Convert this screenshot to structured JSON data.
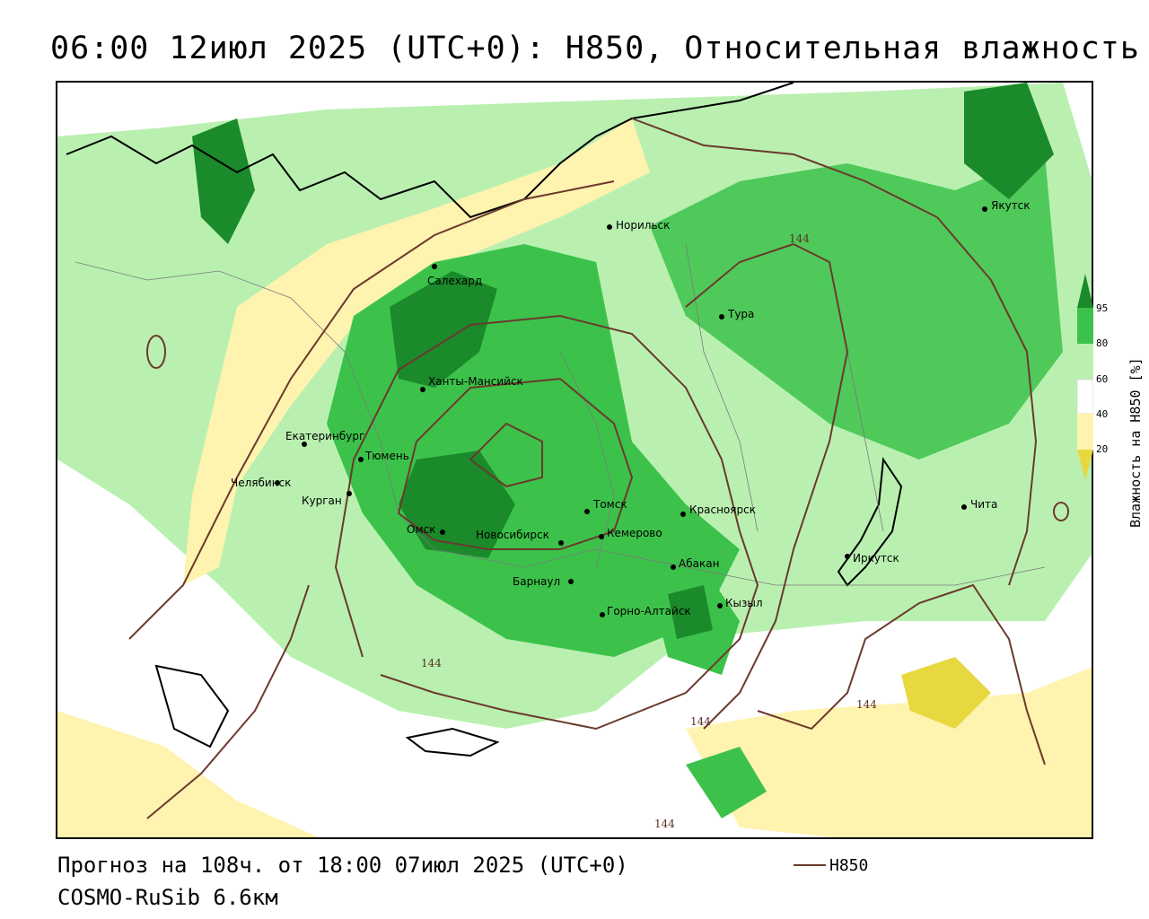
{
  "title": "06:00 12июл 2025 (UTC+0): H850, Относительная влажность",
  "footer": {
    "forecast": "Прогноз на 108ч. от 18:00 07июл 2025 (UTC+0)",
    "model": "COSMO-RuSib 6.6км"
  },
  "legend": {
    "contour_label": "H850",
    "contour_color": "#6b3a2e"
  },
  "colorbar": {
    "title": "Влажность на H850 [%]",
    "ticks": [
      "95",
      "80",
      "60",
      "40",
      "20"
    ],
    "colors": {
      "c95": "#1a8a2a",
      "c80": "#3cc24a",
      "c60": "#b9f0b0",
      "c50": "#ffffff",
      "c40": "#fff3b0",
      "c20": "#e8d840"
    }
  },
  "contour_labels": [
    "144",
    "144",
    "144",
    "144",
    "144"
  ],
  "cities": [
    {
      "name": "Норильск"
    },
    {
      "name": "Якутск"
    },
    {
      "name": "Салехард"
    },
    {
      "name": "Тура"
    },
    {
      "name": "Ханты-Мансийск"
    },
    {
      "name": "Екатеринбург"
    },
    {
      "name": "Тюмень"
    },
    {
      "name": "Челябинск"
    },
    {
      "name": "Курган"
    },
    {
      "name": "Омск"
    },
    {
      "name": "Новосибирск"
    },
    {
      "name": "Томск"
    },
    {
      "name": "Красноярск"
    },
    {
      "name": "Кемерово"
    },
    {
      "name": "Абакан"
    },
    {
      "name": "Барнаул"
    },
    {
      "name": "Горно-Алтайск"
    },
    {
      "name": "Кызыл"
    },
    {
      "name": "Иркутск"
    },
    {
      "name": "Чита"
    }
  ]
}
